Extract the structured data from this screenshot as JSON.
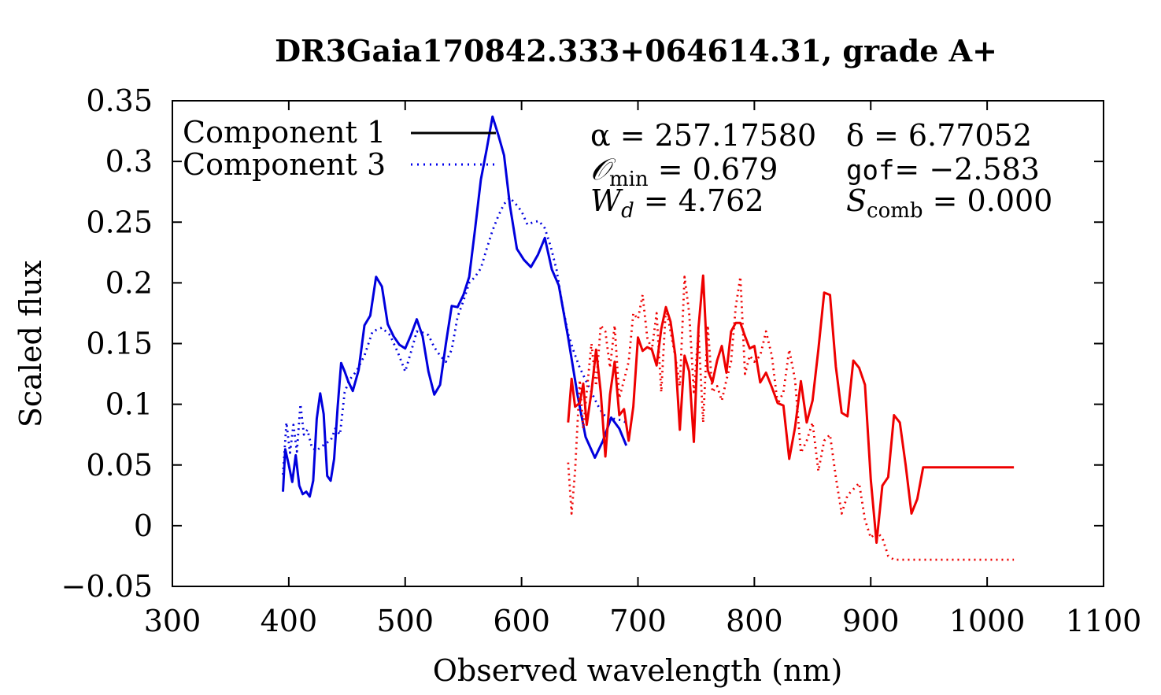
{
  "chart_data": {
    "type": "line",
    "title": "DR3Gaia170842.333+064614.31, grade A+",
    "xlabel": "Observed wavelength (nm)",
    "ylabel": "Scaled flux",
    "xlim": [
      300,
      1100
    ],
    "ylim": [
      -0.05,
      0.35
    ],
    "x_ticks": [
      300,
      400,
      500,
      600,
      700,
      800,
      900,
      1000,
      1100
    ],
    "y_ticks": [
      -0.05,
      0,
      0.05,
      0.1,
      0.15,
      0.2,
      0.25,
      0.3,
      0.35
    ],
    "x_tick_labels": [
      "300",
      "400",
      "500",
      "600",
      "700",
      "800",
      "900",
      "1000",
      "1100"
    ],
    "y_tick_labels": [
      "−0.05",
      "0",
      "0.05",
      "0.1",
      "0.15",
      "0.2",
      "0.25",
      "0.3",
      "0.35"
    ],
    "grid": false,
    "legend": {
      "position": "top-left",
      "entries": [
        {
          "label": "Component 1",
          "style": "solid",
          "color": "#000000"
        },
        {
          "label": "Component 3",
          "style": "dotted",
          "color": "#0000ee"
        }
      ]
    },
    "annotations": [
      [
        "α = 257.17580",
        "δ = 6.77052"
      ],
      [
        "𝒪",
        "min",
        " = 0.679",
        "gof",
        "= −2.583"
      ],
      [
        "W",
        "d",
        " = 4.762",
        "S",
        "comb",
        " = 0.000"
      ]
    ],
    "series": [
      {
        "name": "Component 1 (blue)",
        "color": "#0000dd",
        "style": "solid",
        "x": [
          395,
          397,
          400,
          403,
          406,
          409,
          412,
          415,
          418,
          421,
          424,
          427,
          430,
          433,
          436,
          439,
          442,
          445,
          448,
          451,
          455,
          460,
          465,
          470,
          475,
          480,
          485,
          490,
          495,
          500,
          505,
          510,
          515,
          520,
          525,
          530,
          535,
          540,
          545,
          550,
          555,
          560,
          565,
          570,
          575,
          580,
          585,
          590,
          596,
          602,
          608,
          614,
          620,
          626,
          632,
          640,
          648,
          655,
          663,
          670,
          677,
          684,
          690
        ],
        "y": [
          0.028,
          0.063,
          0.05,
          0.036,
          0.058,
          0.033,
          0.026,
          0.028,
          0.024,
          0.037,
          0.088,
          0.109,
          0.092,
          0.041,
          0.037,
          0.055,
          0.098,
          0.134,
          0.127,
          0.119,
          0.111,
          0.128,
          0.165,
          0.173,
          0.205,
          0.197,
          0.166,
          0.156,
          0.149,
          0.146,
          0.157,
          0.17,
          0.156,
          0.127,
          0.108,
          0.116,
          0.15,
          0.181,
          0.18,
          0.19,
          0.205,
          0.244,
          0.285,
          0.31,
          0.337,
          0.322,
          0.305,
          0.264,
          0.228,
          0.219,
          0.213,
          0.223,
          0.237,
          0.211,
          0.198,
          0.155,
          0.108,
          0.073,
          0.056,
          0.07,
          0.089,
          0.08,
          0.066
        ]
      },
      {
        "name": "Component 3 (blue)",
        "color": "#0000dd",
        "style": "dotted",
        "x": [
          395,
          398,
          401,
          404,
          407,
          410,
          413,
          416,
          420,
          424,
          428,
          432,
          436,
          440,
          444,
          448,
          452,
          458,
          465,
          472,
          480,
          487,
          494,
          500,
          505,
          510,
          515,
          520,
          525,
          530,
          535,
          540,
          545,
          550,
          555,
          560,
          565,
          570,
          575,
          580,
          585,
          590,
          595,
          600,
          605,
          610,
          615,
          620,
          625,
          630,
          635,
          640,
          645,
          650,
          655,
          660,
          665,
          670,
          675,
          680,
          685,
          690
        ],
        "y": [
          0.042,
          0.085,
          0.06,
          0.083,
          0.061,
          0.1,
          0.075,
          0.079,
          0.064,
          0.062,
          0.065,
          0.068,
          0.07,
          0.08,
          0.075,
          0.11,
          0.12,
          0.127,
          0.14,
          0.16,
          0.163,
          0.157,
          0.142,
          0.127,
          0.143,
          0.16,
          0.159,
          0.157,
          0.147,
          0.14,
          0.135,
          0.145,
          0.172,
          0.185,
          0.2,
          0.205,
          0.212,
          0.228,
          0.243,
          0.255,
          0.265,
          0.27,
          0.265,
          0.259,
          0.248,
          0.25,
          0.251,
          0.245,
          0.23,
          0.211,
          0.182,
          0.158,
          0.143,
          0.13,
          0.12,
          0.11,
          0.1,
          0.092,
          0.088,
          0.088,
          0.087,
          0.085
        ]
      },
      {
        "name": "Component 1 (red)",
        "color": "#ee0000",
        "style": "solid",
        "x": [
          640,
          643,
          646,
          650,
          653,
          656,
          660,
          664,
          668,
          672,
          676,
          680,
          684,
          688,
          692,
          696,
          700,
          704,
          708,
          712,
          716,
          720,
          724,
          728,
          732,
          736,
          740,
          744,
          748,
          752,
          756,
          760,
          764,
          768,
          772,
          776,
          780,
          784,
          788,
          792,
          796,
          800,
          805,
          810,
          815,
          820,
          825,
          830,
          835,
          840,
          845,
          850,
          855,
          860,
          865,
          870,
          875,
          880,
          885,
          890,
          895,
          900,
          905,
          910,
          915,
          920,
          925,
          930,
          935,
          940,
          945,
          950,
          955,
          960,
          965,
          970,
          975,
          980,
          985,
          990,
          995,
          1000,
          1005,
          1010,
          1015,
          1020,
          1023
        ],
        "y": [
          0.085,
          0.121,
          0.098,
          0.101,
          0.117,
          0.083,
          0.11,
          0.145,
          0.11,
          0.057,
          0.108,
          0.135,
          0.091,
          0.096,
          0.07,
          0.098,
          0.155,
          0.144,
          0.147,
          0.145,
          0.132,
          0.162,
          0.18,
          0.168,
          0.141,
          0.079,
          0.14,
          0.127,
          0.069,
          0.163,
          0.206,
          0.128,
          0.118,
          0.136,
          0.148,
          0.126,
          0.16,
          0.167,
          0.167,
          0.156,
          0.146,
          0.148,
          0.118,
          0.126,
          0.114,
          0.101,
          0.099,
          0.055,
          0.081,
          0.119,
          0.085,
          0.103,
          0.145,
          0.192,
          0.19,
          0.131,
          0.093,
          0.09,
          0.136,
          0.13,
          0.116,
          0.038,
          -0.014,
          0.033,
          0.04,
          0.091,
          0.085,
          0.05,
          0.01,
          0.022,
          0.048,
          0.048,
          0.048,
          0.048,
          0.048,
          0.048,
          0.048,
          0.048,
          0.048,
          0.048,
          0.048,
          0.048,
          0.048,
          0.048,
          0.048,
          0.048,
          0.048
        ],
        "y_note": "trailing region ends at 1023 nm"
      },
      {
        "name": "Component 3 (red)",
        "color": "#ee0000",
        "style": "dotted",
        "x": [
          640,
          643,
          646,
          650,
          653,
          656,
          660,
          664,
          668,
          672,
          676,
          680,
          684,
          688,
          692,
          696,
          700,
          704,
          708,
          712,
          716,
          720,
          724,
          728,
          732,
          736,
          740,
          744,
          748,
          752,
          756,
          760,
          764,
          768,
          772,
          776,
          780,
          784,
          788,
          792,
          796,
          800,
          805,
          810,
          815,
          820,
          825,
          830,
          835,
          840,
          845,
          850,
          855,
          860,
          865,
          870,
          875,
          880,
          885,
          890,
          895,
          900,
          905,
          910,
          915,
          920,
          925,
          930,
          935,
          940,
          945,
          950,
          955,
          960,
          965,
          970,
          975,
          980,
          985,
          990,
          995,
          1000,
          1005,
          1010,
          1015,
          1020,
          1023
        ],
        "y": [
          0.052,
          0.01,
          0.045,
          0.12,
          0.08,
          0.11,
          0.15,
          0.115,
          0.165,
          0.16,
          0.13,
          0.165,
          0.105,
          0.12,
          0.135,
          0.175,
          0.17,
          0.19,
          0.155,
          0.145,
          0.175,
          0.11,
          0.18,
          0.16,
          0.14,
          0.115,
          0.205,
          0.175,
          0.11,
          0.16,
          0.085,
          0.165,
          0.11,
          0.115,
          0.103,
          0.12,
          0.135,
          0.18,
          0.205,
          0.125,
          0.14,
          0.135,
          0.14,
          0.16,
          0.14,
          0.1,
          0.11,
          0.145,
          0.12,
          0.06,
          0.07,
          0.085,
          0.045,
          0.07,
          0.075,
          0.04,
          0.01,
          0.025,
          0.03,
          0.035,
          0.005,
          -0.01,
          -0.005,
          -0.01,
          -0.025,
          -0.028,
          -0.028,
          -0.028,
          -0.028,
          -0.028,
          -0.028,
          -0.028,
          -0.028,
          -0.028,
          -0.028,
          -0.028,
          -0.028,
          -0.028,
          -0.028,
          -0.028,
          -0.028,
          -0.028,
          -0.028,
          -0.028,
          -0.028,
          -0.028,
          -0.028
        ]
      }
    ]
  }
}
